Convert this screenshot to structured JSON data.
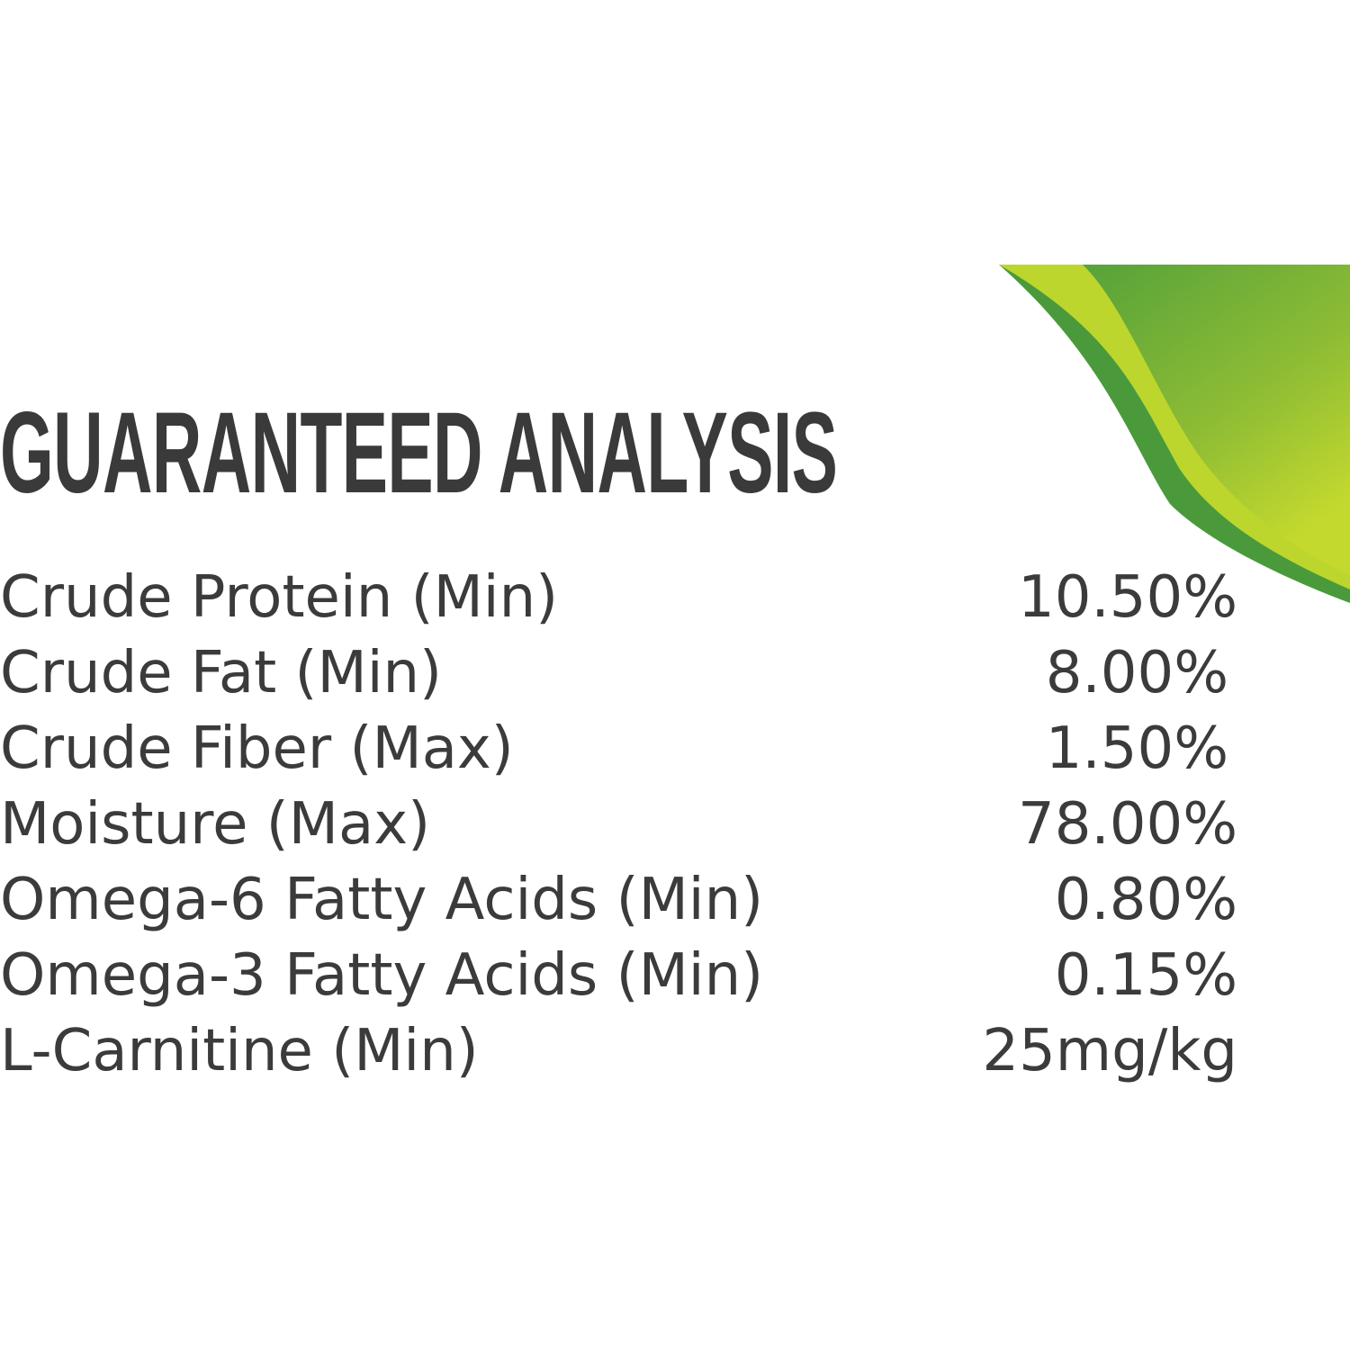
{
  "title": "GUARANTEED ANALYSIS",
  "rows": [
    {
      "label": "Crude Protein (Min)",
      "value": "10.50%"
    },
    {
      "label": "Crude Fat (Min)",
      "value": "8.00%"
    },
    {
      "label": "Crude Fiber (Max)",
      "value": "1.50%"
    },
    {
      "label": "Moisture (Max)",
      "value": "78.00%"
    },
    {
      "label": "Omega-6 Fatty Acids (Min)",
      "value": "0.80%"
    },
    {
      "label": "Omega-3 Fatty Acids (Min)",
      "value": "0.15%"
    },
    {
      "label": "L-Carnitine (Min)",
      "value": "25mg/kg"
    }
  ],
  "colors": {
    "text": "#3b3b3b",
    "leaf_dark": "#4a9a3c",
    "leaf_light": "#c4d92e"
  }
}
